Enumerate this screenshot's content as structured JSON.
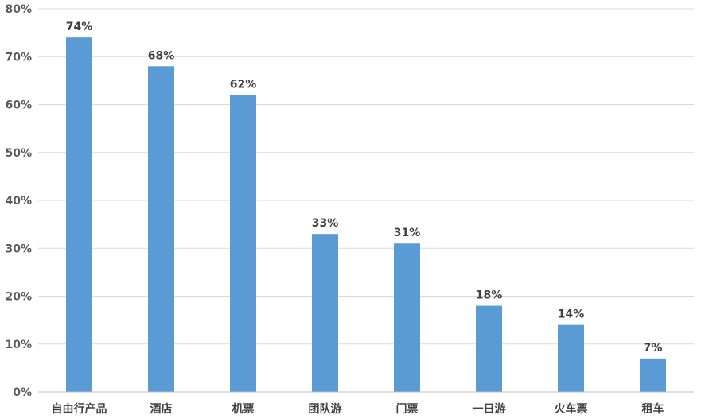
{
  "chart_data": {
    "type": "bar",
    "categories": [
      "自由行产品",
      "酒店",
      "机票",
      "团队游",
      "门票",
      "一日游",
      "火车票",
      "租车"
    ],
    "values": [
      74,
      68,
      62,
      33,
      31,
      18,
      14,
      7
    ],
    "value_labels": [
      "74%",
      "68%",
      "62%",
      "33%",
      "31%",
      "18%",
      "14%",
      "7%"
    ],
    "yticks": [
      "0%",
      "10%",
      "20%",
      "30%",
      "40%",
      "50%",
      "60%",
      "70%",
      "80%"
    ],
    "ylim": [
      0,
      80
    ],
    "grid": true,
    "legend": "none",
    "bar_color": "#5b9bd5"
  }
}
